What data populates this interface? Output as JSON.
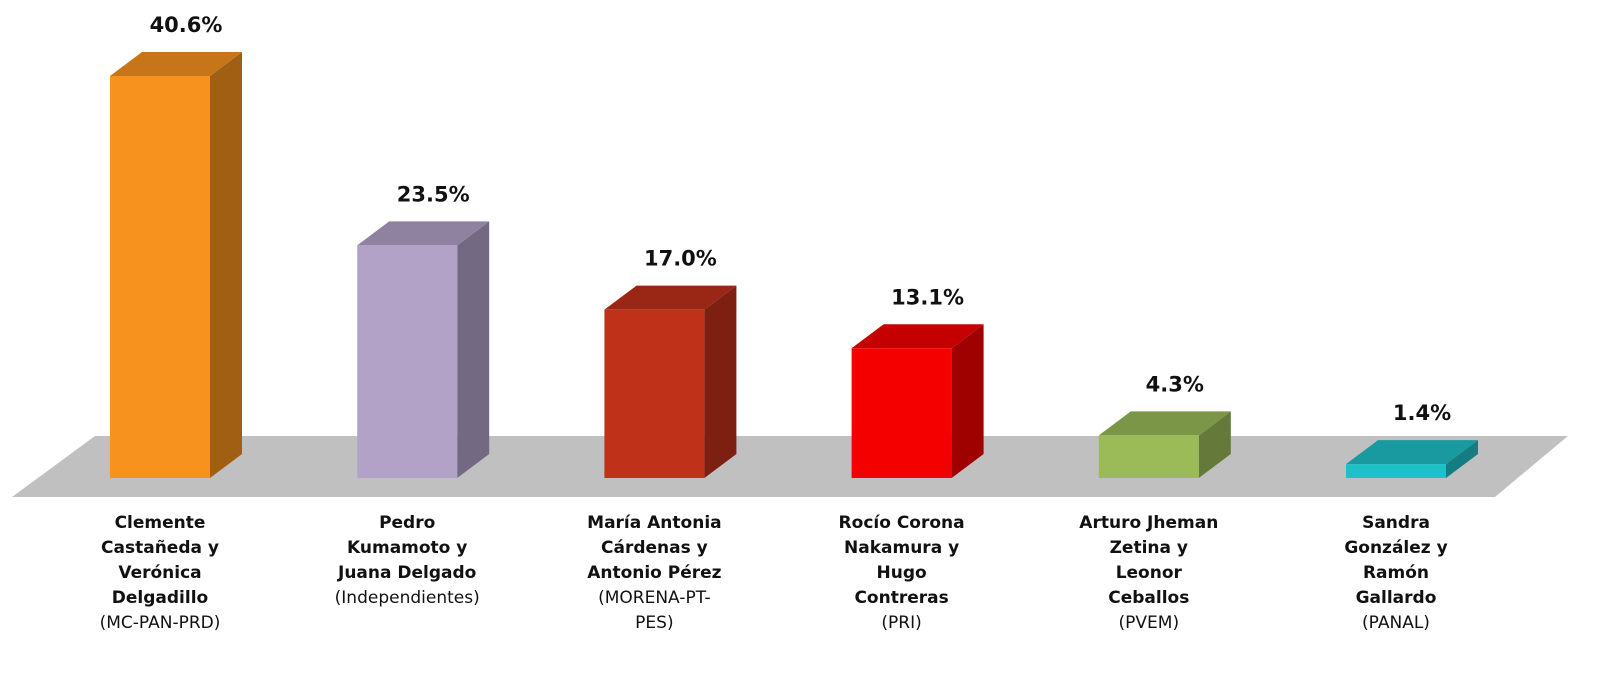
{
  "chart_data": {
    "type": "bar3d",
    "categories": [
      "Clemente Castañeda y Verónica Delgadillo",
      "Pedro Kumamoto y Juana Delgado",
      "María Antonia Cárdenas y Antonio Pérez",
      "Rocío Corona Nakamura y Hugo Contreras",
      "Arturo Jheman Zetina y Leonor Ceballos",
      "Sandra González y Ramón Gallardo"
    ],
    "parties": [
      "(MC-PAN-PRD)",
      "(Independientes)",
      "(MORENA-PT-PES)",
      "(PRI)",
      "(PVEM)",
      "(PANAL)"
    ],
    "values": [
      40.6,
      23.5,
      17.0,
      13.1,
      4.3,
      1.4
    ],
    "value_labels": [
      "40.6%",
      "23.5%",
      "17.0%",
      "13.1%",
      "4.3%",
      "1.4%"
    ],
    "colors": [
      "#f7921e",
      "#b3a2c8",
      "#c0311a",
      "#f50000",
      "#9bbb59",
      "#1fc0c8"
    ]
  }
}
